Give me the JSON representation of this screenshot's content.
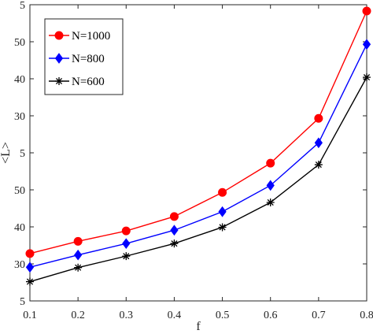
{
  "chart_data": {
    "type": "line",
    "xlabel": "f",
    "ylabel": "<L>",
    "x": [
      0.1,
      0.2,
      0.3,
      0.4,
      0.5,
      0.6,
      0.7,
      0.8
    ],
    "xticks": [
      "0.1",
      "0.2",
      "0.3",
      "0.4",
      "0.5",
      "0.6",
      "0.7",
      "0.8"
    ],
    "xlim": [
      0.1,
      0.8
    ],
    "ylim": [
      0,
      8
    ],
    "yticks": [
      {
        "value": 0,
        "label": "5"
      },
      {
        "value": 1,
        "label": "30"
      },
      {
        "value": 2,
        "label": "40"
      },
      {
        "value": 3,
        "label": "50"
      },
      {
        "value": 4,
        "label": "5"
      },
      {
        "value": 5,
        "label": "30"
      },
      {
        "value": 6,
        "label": "40"
      },
      {
        "value": 7,
        "label": "50"
      },
      {
        "value": 8,
        "label": "5"
      }
    ],
    "legend_position": "top-left",
    "series": [
      {
        "name": "N=1000",
        "color": "#ff0000",
        "marker": "circle",
        "values": [
          1.28,
          1.61,
          1.89,
          2.28,
          2.93,
          3.72,
          4.93,
          7.83
        ]
      },
      {
        "name": "N=800",
        "color": "#0000ff",
        "marker": "diamond",
        "values": [
          0.91,
          1.24,
          1.55,
          1.91,
          2.41,
          3.12,
          4.27,
          6.93
        ]
      },
      {
        "name": "N=600",
        "color": "#000000",
        "marker": "asterisk",
        "values": [
          0.52,
          0.9,
          1.21,
          1.55,
          1.99,
          2.66,
          3.68,
          6.04
        ]
      }
    ]
  }
}
